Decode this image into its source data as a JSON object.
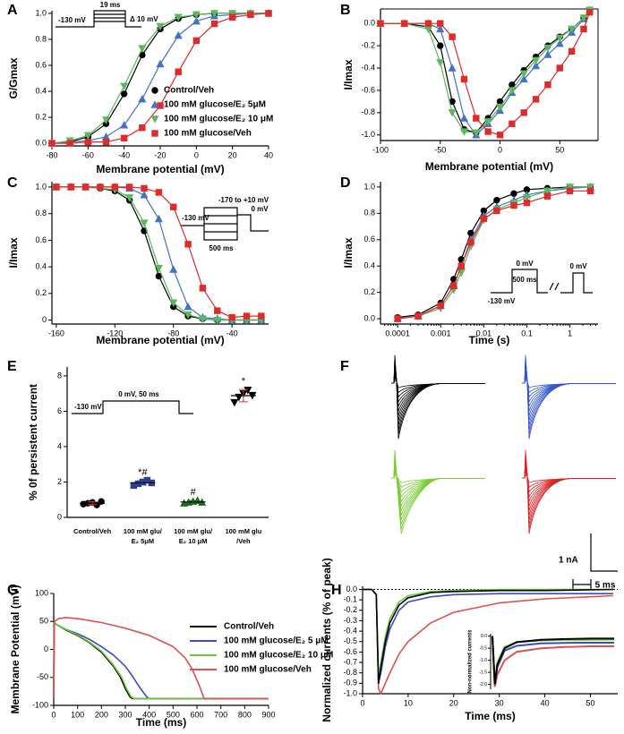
{
  "chart_data": [
    {
      "panel": "A",
      "type": "line",
      "xlabel": "Membrane potential (mV)",
      "ylabel": "G/Gmax",
      "xlim": [
        -80,
        40
      ],
      "xticks": [
        -80,
        -60,
        -40,
        -20,
        0,
        20,
        40
      ],
      "ylim": [
        -0.02,
        1.02
      ],
      "yticks": [
        {
          "value": 0,
          "label": "0.0"
        },
        0.2,
        0.4,
        0.6,
        0.8,
        {
          "value": 1,
          "label": "1.0"
        }
      ],
      "x": [
        -80,
        -70,
        -60,
        -50,
        -40,
        -30,
        -20,
        -10,
        0,
        10,
        20,
        30,
        40
      ],
      "legend": "right",
      "protocol_labels": [
        "19 ms",
        "-130 mV",
        "Δ 10 mV"
      ],
      "series": [
        {
          "name": "Control/Veh",
          "color": "#000000",
          "marker": "circle",
          "values": [
            0.0,
            0.01,
            0.05,
            0.15,
            0.38,
            0.68,
            0.88,
            0.96,
            0.99,
            1.0,
            1.0,
            1.0,
            1.0
          ]
        },
        {
          "name": "100 mM glucose/E₂ 5μM",
          "color": "#4472c4",
          "marker": "triangle-up",
          "values": [
            0.0,
            0.01,
            0.02,
            0.05,
            0.14,
            0.34,
            0.61,
            0.83,
            0.94,
            0.98,
            0.99,
            1.0,
            1.0
          ]
        },
        {
          "name": "100 mM glucose/E₂ 10 μM",
          "color": "#5cb85c",
          "marker": "triangle-down",
          "values": [
            0.0,
            0.02,
            0.06,
            0.18,
            0.44,
            0.73,
            0.9,
            0.97,
            0.99,
            1.0,
            1.0,
            1.0,
            1.0
          ]
        },
        {
          "name": "100 mM glucose/Veh",
          "color": "#e02b2b",
          "marker": "square",
          "values": [
            0.0,
            0.0,
            0.01,
            0.01,
            0.04,
            0.12,
            0.29,
            0.55,
            0.79,
            0.92,
            0.97,
            0.99,
            1.0
          ]
        }
      ]
    },
    {
      "panel": "B",
      "type": "line",
      "xlabel": "Membrane potential (mV)",
      "ylabel": "I/Imax",
      "frame": true,
      "xlim": [
        -100,
        82
      ],
      "xticks": [
        -100,
        -50,
        0,
        50
      ],
      "ylim": [
        -1.05,
        0.13
      ],
      "yticks": [
        {
          "value": 0,
          "label": "0.0"
        },
        -0.2,
        -0.4,
        -0.6,
        -0.8,
        {
          "value": -1,
          "label": "-1.0"
        }
      ],
      "x": [
        -100,
        -80,
        -60,
        -50,
        -40,
        -30,
        -20,
        -10,
        0,
        10,
        20,
        30,
        40,
        50,
        60,
        70,
        75
      ],
      "series": [
        {
          "color": "#000000",
          "marker": "circle",
          "values": [
            0,
            0,
            -0.03,
            -0.2,
            -0.7,
            -0.95,
            -0.98,
            -0.85,
            -0.7,
            -0.55,
            -0.42,
            -0.3,
            -0.2,
            -0.12,
            -0.05,
            0.05,
            0.12
          ]
        },
        {
          "color": "#4472c4",
          "marker": "triangle-up",
          "values": [
            0,
            0,
            0,
            -0.05,
            -0.4,
            -0.85,
            -1.0,
            -0.9,
            -0.78,
            -0.62,
            -0.5,
            -0.38,
            -0.28,
            -0.18,
            -0.08,
            0.04,
            0.12
          ]
        },
        {
          "color": "#5cb85c",
          "marker": "triangle-down",
          "values": [
            0,
            0,
            -0.05,
            -0.35,
            -0.8,
            -0.97,
            -0.98,
            -0.88,
            -0.75,
            -0.6,
            -0.45,
            -0.33,
            -0.22,
            -0.13,
            -0.05,
            0.05,
            0.12
          ]
        },
        {
          "color": "#e02b2b",
          "marker": "square",
          "values": [
            0,
            0,
            0,
            0,
            -0.12,
            -0.5,
            -0.85,
            -0.97,
            -1.0,
            -0.9,
            -0.8,
            -0.68,
            -0.55,
            -0.4,
            -0.25,
            -0.05,
            0.1
          ]
        }
      ]
    },
    {
      "panel": "C",
      "type": "line",
      "xlabel": "Membrane potential (mV)",
      "ylabel": "I/Imax",
      "xlim": [
        -163,
        -15
      ],
      "xticks": [
        -160,
        -120,
        -80,
        -40
      ],
      "ylim": [
        -0.03,
        1.04
      ],
      "yticks": [
        0,
        0.2,
        0.4,
        0.6,
        0.8,
        {
          "value": 1,
          "label": "1.0"
        }
      ],
      "x": [
        -160,
        -150,
        -140,
        -130,
        -120,
        -110,
        -100,
        -90,
        -80,
        -70,
        -60,
        -50,
        -40,
        -30,
        -20
      ],
      "protocol_labels": [
        "-130 mV",
        "-170 to +10 mV",
        "0 mV",
        "500 ms"
      ],
      "series": [
        {
          "color": "#000000",
          "marker": "circle",
          "values": [
            1.0,
            1.0,
            1.0,
            0.99,
            0.97,
            0.9,
            0.67,
            0.33,
            0.1,
            0.03,
            0.01,
            0.0,
            0.0,
            0.0,
            0.0
          ]
        },
        {
          "color": "#4472c4",
          "marker": "triangle-up",
          "values": [
            1.0,
            1.0,
            1.0,
            1.0,
            1.0,
            0.99,
            0.94,
            0.76,
            0.38,
            0.1,
            0.02,
            0.01,
            0.0,
            0.0,
            0.0
          ]
        },
        {
          "color": "#5cb85c",
          "marker": "triangle-down",
          "values": [
            1.0,
            1.0,
            1.0,
            0.99,
            0.98,
            0.92,
            0.73,
            0.39,
            0.13,
            0.04,
            0.01,
            0.0,
            0.0,
            0.0,
            0.0
          ]
        },
        {
          "color": "#e02b2b",
          "marker": "square",
          "values": [
            1.0,
            1.0,
            1.0,
            1.0,
            1.0,
            1.0,
            0.99,
            0.96,
            0.85,
            0.57,
            0.24,
            0.07,
            0.02,
            0.03,
            0.03
          ]
        }
      ]
    },
    {
      "panel": "D",
      "type": "line",
      "xlabel": "Time (s)",
      "ylabel": "I/Imax",
      "xlog": true,
      "xlim": [
        4e-05,
        4.5
      ],
      "xticks": [
        0.0001,
        0.001,
        0.01,
        0.1,
        1
      ],
      "ylim": [
        -0.04,
        1.04
      ],
      "yticks": [
        {
          "value": 0,
          "label": "0.0"
        },
        0.2,
        0.4,
        0.6,
        0.8,
        {
          "value": 1,
          "label": "1.0"
        }
      ],
      "x": [
        0.0001,
        0.0003,
        0.001,
        0.002,
        0.003,
        0.005,
        0.01,
        0.02,
        0.05,
        0.1,
        0.3,
        1,
        3
      ],
      "protocol_labels": [
        "0 mV",
        "500 ms",
        "-130 mV",
        "0 mV"
      ],
      "series": [
        {
          "color": "#000000",
          "marker": "circle",
          "values": [
            0.01,
            0.03,
            0.12,
            0.3,
            0.45,
            0.65,
            0.82,
            0.9,
            0.95,
            0.98,
            0.99,
            1.0,
            1.0
          ]
        },
        {
          "color": "#4472c4",
          "marker": "triangle-up",
          "values": [
            0.0,
            0.02,
            0.1,
            0.25,
            0.4,
            0.6,
            0.78,
            0.85,
            0.9,
            0.94,
            0.97,
            0.99,
            1.0
          ]
        },
        {
          "color": "#5cb85c",
          "marker": "triangle-down",
          "values": [
            0.0,
            0.02,
            0.08,
            0.22,
            0.35,
            0.55,
            0.75,
            0.83,
            0.88,
            0.92,
            0.97,
            1.0,
            1.0
          ]
        },
        {
          "color": "#e02b2b",
          "marker": "square",
          "values": [
            0.0,
            0.02,
            0.1,
            0.25,
            0.4,
            0.58,
            0.76,
            0.82,
            0.86,
            0.88,
            0.93,
            0.97,
            0.97
          ]
        }
      ]
    },
    {
      "panel": "E",
      "type": "dot",
      "ylabel": "% 0f persistent current",
      "ylim": [
        0,
        8.5
      ],
      "yticks": [
        0,
        2,
        4,
        6,
        8
      ],
      "categories": [
        [
          "Control/Veh"
        ],
        [
          "100 mM glu/",
          "E₂ 5μM"
        ],
        [
          "100 mM glu/",
          "E₂ 10 μM"
        ],
        [
          "100 mM glu",
          "/Veh"
        ]
      ],
      "values": [
        0.8,
        1.95,
        0.87,
        6.88
      ],
      "errors": [
        0.08,
        0.12,
        0.08,
        0.35
      ],
      "points": [
        [
          0.75,
          0.8,
          0.85,
          0.7,
          0.9
        ],
        [
          1.8,
          1.9,
          2.0,
          2.1,
          1.95
        ],
        [
          0.8,
          0.85,
          0.9,
          0.95,
          0.85
        ],
        [
          6.5,
          6.8,
          7.0,
          7.2,
          6.9
        ]
      ],
      "markers": [
        "circle",
        "square",
        "triangle-up",
        "triangle-down"
      ],
      "colors": [
        "#000000",
        "#2f3f8f",
        "#1d6b1d",
        "#000000"
      ],
      "annotations": [
        {
          "category": 1,
          "text": "*#"
        },
        {
          "category": 2,
          "text": "#"
        },
        {
          "category": 3,
          "text": "*"
        }
      ],
      "protocol_labels": [
        "-130 mV",
        "0 mV, 50 ms"
      ]
    },
    {
      "panel": "F",
      "type": "traces",
      "colors": [
        "#000000",
        "#3355cc",
        "#77cc33",
        "#dd2222"
      ],
      "scale_labels": [
        "1 nA",
        "5 ms"
      ]
    },
    {
      "panel": "G",
      "type": "line",
      "xlabel": "Time (ms)",
      "ylabel": "Membrane Potential (mV)",
      "xlim": [
        0,
        900
      ],
      "xticks": [
        0,
        100,
        200,
        300,
        400,
        500,
        600,
        700,
        800,
        900
      ],
      "ylim": [
        -100,
        100
      ],
      "yticks": [
        -100,
        -50,
        0,
        50,
        100
      ],
      "legend": "right",
      "series": [
        {
          "name": "Control/Veh",
          "color": "#000000",
          "x": [
            0,
            2,
            10,
            50,
            100,
            150,
            200,
            250,
            280,
            300,
            320,
            330,
            900
          ],
          "values": [
            -88,
            48,
            45,
            35,
            25,
            12,
            -5,
            -30,
            -50,
            -70,
            -85,
            -88,
            -88
          ]
        },
        {
          "name": "100 mM glucose/E₂ 5 μM",
          "color": "#3b4cc0",
          "x": [
            0,
            2,
            10,
            50,
            100,
            150,
            200,
            250,
            300,
            330,
            360,
            390,
            400,
            900
          ],
          "values": [
            -88,
            48,
            45,
            36,
            28,
            18,
            5,
            -10,
            -30,
            -48,
            -68,
            -85,
            -88,
            -88
          ]
        },
        {
          "name": "100 mM glucose/E₂ 10 μM",
          "color": "#66cc33",
          "x": [
            0,
            2,
            10,
            50,
            100,
            150,
            200,
            250,
            285,
            305,
            325,
            338,
            900
          ],
          "values": [
            -88,
            48,
            45,
            36,
            26,
            13,
            -3,
            -28,
            -50,
            -70,
            -85,
            -88,
            -88
          ]
        },
        {
          "name": "100 mM glucose/Veh",
          "color": "#e05050",
          "x": [
            0,
            3,
            20,
            50,
            100,
            200,
            300,
            400,
            500,
            550,
            580,
            610,
            630,
            900
          ],
          "values": [
            -88,
            50,
            55,
            57,
            55,
            48,
            38,
            25,
            5,
            -15,
            -35,
            -65,
            -88,
            -88
          ]
        }
      ]
    },
    {
      "panel": "H",
      "type": "line",
      "xlabel": "Time (ms)",
      "ylabel": "Normalized currents (% of peak)",
      "xlim": [
        0,
        56
      ],
      "xticks": [
        0,
        10,
        20,
        30,
        40,
        50
      ],
      "ylim": [
        -1,
        0.03
      ],
      "yticks": [
        {
          "value": 0,
          "label": "0.0"
        },
        -0.1,
        -0.2,
        -0.3,
        -0.4,
        -0.5,
        -0.6,
        -0.7,
        -0.8,
        -0.9,
        {
          "value": -1,
          "label": "-1.0"
        }
      ],
      "series": [
        {
          "color": "#e05050",
          "x": [
            0,
            2,
            3,
            3.5,
            4,
            5,
            6,
            8,
            10,
            15,
            20,
            30,
            40,
            55
          ],
          "values": [
            0,
            0,
            -0.05,
            -0.95,
            -1.0,
            -0.9,
            -0.8,
            -0.62,
            -0.5,
            -0.32,
            -0.22,
            -0.13,
            -0.09,
            -0.06
          ]
        },
        {
          "color": "#3b4cc0",
          "x": [
            0,
            2,
            3,
            3.5,
            4,
            5,
            6,
            8,
            10,
            15,
            20,
            30,
            40,
            55
          ],
          "values": [
            0,
            0,
            -0.05,
            -0.9,
            -0.8,
            -0.55,
            -0.38,
            -0.2,
            -0.12,
            -0.07,
            -0.05,
            -0.04,
            -0.04,
            -0.04
          ]
        },
        {
          "color": "#66cc33",
          "x": [
            0,
            2,
            3,
            3.5,
            4,
            5,
            6,
            8,
            10,
            15,
            20,
            30,
            40,
            55
          ],
          "values": [
            0,
            0,
            -0.05,
            -0.85,
            -0.7,
            -0.45,
            -0.28,
            -0.12,
            -0.06,
            -0.02,
            -0.01,
            0,
            0,
            0
          ]
        },
        {
          "color": "#000000",
          "x": [
            0,
            2,
            3,
            3.5,
            4,
            5,
            6,
            8,
            10,
            15,
            20,
            30,
            40,
            55
          ],
          "values": [
            0,
            0,
            -0.05,
            -0.9,
            -0.75,
            -0.5,
            -0.32,
            -0.15,
            -0.08,
            -0.03,
            -0.02,
            -0.01,
            -0.01,
            0
          ]
        }
      ],
      "inset": {
        "ylabel": "Non-normalized currents",
        "ylim": [
          -2.2,
          0.1
        ],
        "yticks": [
          {
            "value": 0,
            "label": "0.0"
          },
          -0.5,
          {
            "value": -1,
            "label": "-1.0"
          },
          -1.5,
          {
            "value": -2,
            "label": "-2.0"
          }
        ],
        "x": [
          0,
          1,
          2,
          5,
          10,
          20,
          30,
          40,
          50
        ],
        "series": [
          {
            "color": "#e05050",
            "values": [
              0,
              -2.1,
              -1.6,
              -1.0,
              -0.65,
              -0.5,
              -0.45,
              -0.42,
              -0.42
            ]
          },
          {
            "color": "#3b4cc0",
            "values": [
              0,
              -2.0,
              -1.3,
              -0.6,
              -0.4,
              -0.3,
              -0.28,
              -0.27,
              -0.27
            ]
          },
          {
            "color": "#66cc33",
            "values": [
              0,
              -2.0,
              -1.1,
              -0.45,
              -0.25,
              -0.18,
              -0.15,
              -0.15,
              -0.14
            ]
          },
          {
            "color": "#000000",
            "values": [
              0,
              -2.0,
              -1.2,
              -0.5,
              -0.25,
              -0.15,
              -0.12,
              -0.1,
              -0.1
            ]
          }
        ]
      }
    }
  ]
}
